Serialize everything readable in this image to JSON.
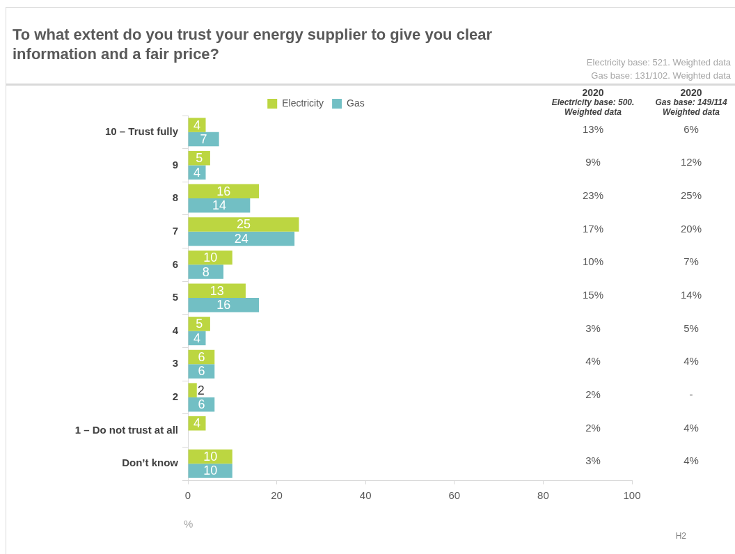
{
  "chart_data": [
    {
      "type": "bar",
      "orientation": "horizontal",
      "title": "To what extent do you trust your energy supplier to give you clear information and a fair price?",
      "subtitle": "Electricity base: 521. Weighted data\nGas base: 131/102. Weighted data",
      "xlabel": "%",
      "categories": [
        "10 – Trust fully",
        "9",
        "8",
        "7",
        "6",
        "5",
        "4",
        "3",
        "2",
        "1 – Do not trust at all",
        "Don’t know"
      ],
      "series": [
        {
          "name": "Electricity",
          "color": "#bcd641",
          "values": [
            4,
            5,
            16,
            25,
            10,
            13,
            5,
            6,
            2,
            4,
            10
          ]
        },
        {
          "name": "Gas",
          "color": "#72bfc4",
          "values": [
            7,
            4,
            14,
            24,
            8,
            16,
            4,
            6,
            6,
            null,
            10
          ]
        }
      ],
      "xlim": [
        0,
        100
      ],
      "xticks": [
        0,
        20,
        40,
        60,
        80,
        100
      ],
      "grid": false,
      "legend": "top",
      "data_labels": true,
      "annotations": [
        "H2"
      ]
    },
    {
      "type": "other",
      "annotations": [
        "2020\nElectricity base: 500. Weighted data",
        "2020\nGas base: 149/114 Weighted data",
        "13%",
        "6%",
        "9%",
        "12%",
        "23%",
        "25%",
        "17%",
        "20%",
        "10%",
        "7%",
        "15%",
        "14%",
        "3%",
        "5%",
        "4%",
        "4%",
        "2%",
        "-",
        "2%",
        "4%",
        "3%",
        "4%"
      ]
    }
  ]
}
